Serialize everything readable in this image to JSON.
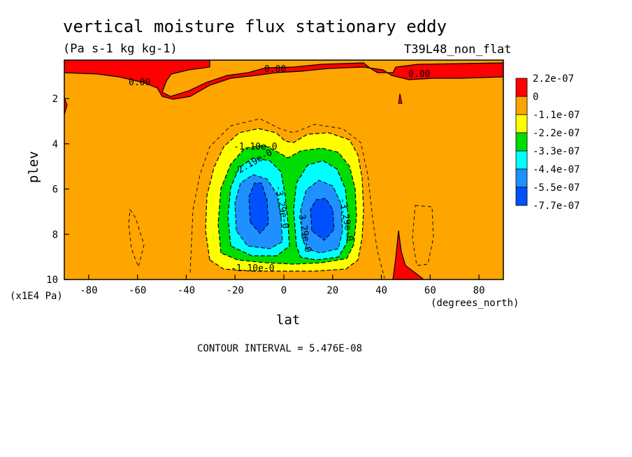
{
  "chart_data": {
    "type": "heatmap",
    "title": "vertical moisture flux stationary eddy",
    "subtitle": "(Pa s-1 kg kg-1)",
    "experiment_label": "T39L48_non_flat",
    "xlabel": "lat",
    "x_units": "(degrees_north)",
    "ylabel": "plev",
    "y_units": "(x1E4 Pa)",
    "xlim": [
      -90,
      90
    ],
    "ylim": [
      10,
      0.3
    ],
    "x_ticks": [
      "-80",
      "-60",
      "-40",
      "-20",
      "0",
      "20",
      "40",
      "60",
      "80"
    ],
    "y_ticks": [
      "2",
      "4",
      "6",
      "8",
      "10"
    ],
    "contour_interval_text": "CONTOUR INTERVAL = 5.476E-08",
    "colorbar": {
      "labels": [
        "2.2e-07",
        "0",
        "-1.1e-07",
        "-2.2e-07",
        "-3.3e-07",
        "-4.4e-07",
        "-5.5e-07",
        "-7.7e-07"
      ],
      "colors": [
        "#ff0000",
        "#ffa500",
        "#ffff00",
        "#00dd00",
        "#00ffff",
        "#1e90ff",
        "#0050ff"
      ]
    },
    "contour_labels": [
      "0.00",
      "0.00",
      "0.00",
      "-1.10e-0",
      "-2.19e-0",
      "-3.29e-0",
      "-3.29e-0",
      "-3.29e-0",
      "-1.10e-0"
    ],
    "features": [
      {
        "region": "upper troposphere, 0.3-1.5 (x1E4 Pa)",
        "sign": "positive",
        "max_approx": 2.2e-07
      },
      {
        "region": "lat -25 to 0, plev 4-9.5",
        "sign": "negative",
        "min_approx": -7.7e-07,
        "center_lat": -10,
        "center_plev": 6.5
      },
      {
        "region": "lat 0 to 28, plev 4.5-9.5",
        "sign": "negative",
        "min_approx": -7.7e-07,
        "center_lat": 15,
        "center_plev": 7.2
      },
      {
        "region": "lat 45, near surface",
        "sign": "positive",
        "max_approx": 2.2e-07
      }
    ]
  }
}
